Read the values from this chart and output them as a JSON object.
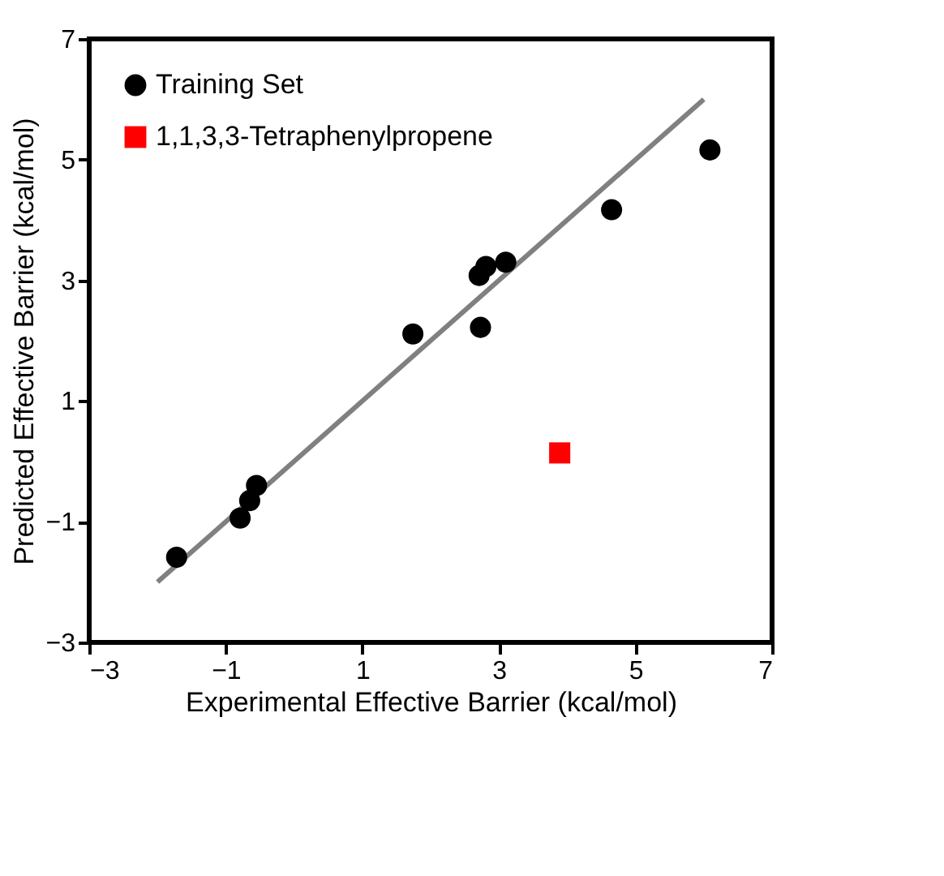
{
  "chart_data": {
    "type": "scatter",
    "xlabel": "Experimental Effective Barrier (kcal/mol)",
    "ylabel": "Predicted Effective Barrier (kcal/mol)",
    "xlim": [
      -3,
      7
    ],
    "ylim": [
      -3,
      7
    ],
    "xticks": [
      -3,
      -1,
      1,
      3,
      5,
      7
    ],
    "yticks": [
      -3,
      -1,
      1,
      3,
      5,
      7
    ],
    "grid": false,
    "legend": "top left",
    "series": [
      {
        "name": "Training Set",
        "color": "#000000",
        "marker": "circle",
        "x": [
          -1.72,
          -0.79,
          -0.65,
          -0.55,
          1.74,
          2.71,
          2.81,
          2.73,
          3.1,
          4.65,
          6.09
        ],
        "values": [
          -1.59,
          -0.94,
          -0.65,
          -0.4,
          2.11,
          3.08,
          3.23,
          2.22,
          3.3,
          4.17,
          5.16
        ]
      },
      {
        "name": "1,1,3,3-Tetraphenylpropene",
        "color": "#ff0000",
        "marker": "square",
        "x": [
          3.89
        ],
        "values": [
          0.14
        ]
      },
      {
        "type": "line",
        "color": "#808080",
        "marker": "none",
        "x": [
          -2,
          6
        ],
        "values": [
          -2,
          6
        ]
      }
    ]
  }
}
